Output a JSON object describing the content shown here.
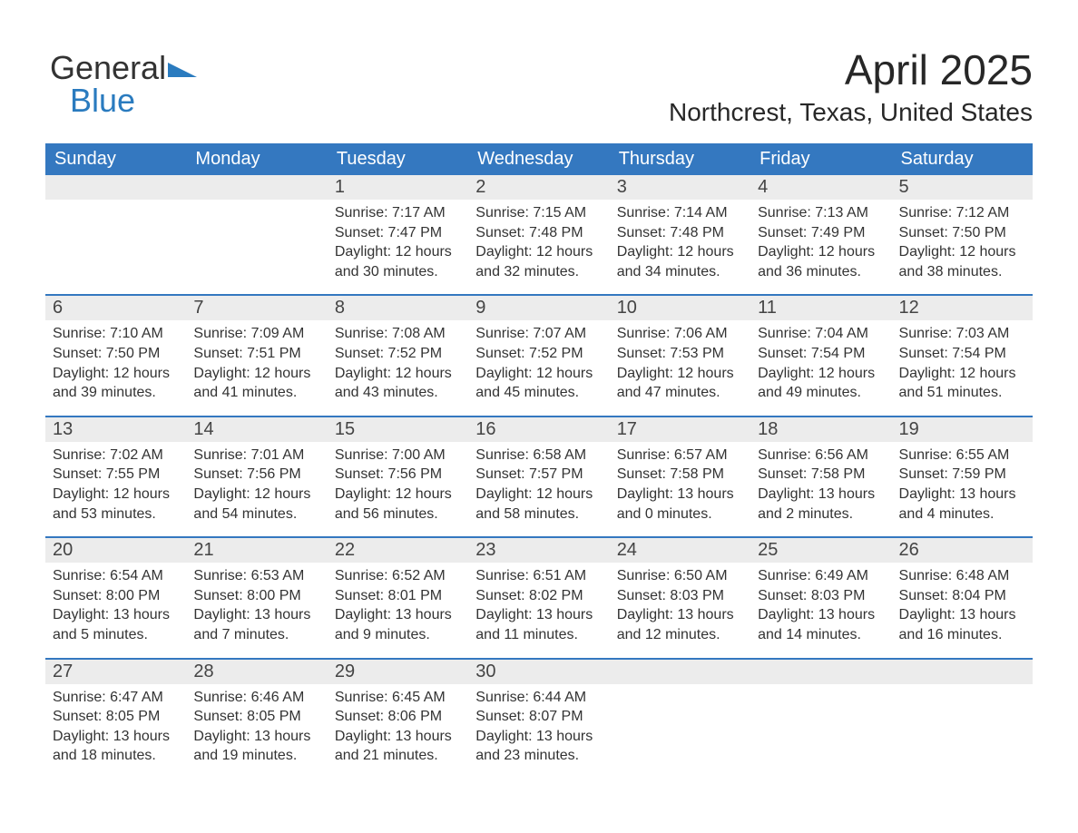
{
  "logo": {
    "general": "General",
    "blue": "Blue",
    "tri_color": "#2a7bbf"
  },
  "header": {
    "month": "April 2025",
    "location": "Northcrest, Texas, United States"
  },
  "colors": {
    "header_bg": "#3478c0",
    "daynum_bg": "#ececec",
    "week_divider": "#3478c0",
    "text": "#272727"
  },
  "daynames": [
    "Sunday",
    "Monday",
    "Tuesday",
    "Wednesday",
    "Thursday",
    "Friday",
    "Saturday"
  ],
  "weeks": [
    [
      {
        "n": "",
        "sunrise": "",
        "sunset": "",
        "daylight1": "",
        "daylight2": ""
      },
      {
        "n": "",
        "sunrise": "",
        "sunset": "",
        "daylight1": "",
        "daylight2": ""
      },
      {
        "n": "1",
        "sunrise": "Sunrise: 7:17 AM",
        "sunset": "Sunset: 7:47 PM",
        "daylight1": "Daylight: 12 hours",
        "daylight2": "and 30 minutes."
      },
      {
        "n": "2",
        "sunrise": "Sunrise: 7:15 AM",
        "sunset": "Sunset: 7:48 PM",
        "daylight1": "Daylight: 12 hours",
        "daylight2": "and 32 minutes."
      },
      {
        "n": "3",
        "sunrise": "Sunrise: 7:14 AM",
        "sunset": "Sunset: 7:48 PM",
        "daylight1": "Daylight: 12 hours",
        "daylight2": "and 34 minutes."
      },
      {
        "n": "4",
        "sunrise": "Sunrise: 7:13 AM",
        "sunset": "Sunset: 7:49 PM",
        "daylight1": "Daylight: 12 hours",
        "daylight2": "and 36 minutes."
      },
      {
        "n": "5",
        "sunrise": "Sunrise: 7:12 AM",
        "sunset": "Sunset: 7:50 PM",
        "daylight1": "Daylight: 12 hours",
        "daylight2": "and 38 minutes."
      }
    ],
    [
      {
        "n": "6",
        "sunrise": "Sunrise: 7:10 AM",
        "sunset": "Sunset: 7:50 PM",
        "daylight1": "Daylight: 12 hours",
        "daylight2": "and 39 minutes."
      },
      {
        "n": "7",
        "sunrise": "Sunrise: 7:09 AM",
        "sunset": "Sunset: 7:51 PM",
        "daylight1": "Daylight: 12 hours",
        "daylight2": "and 41 minutes."
      },
      {
        "n": "8",
        "sunrise": "Sunrise: 7:08 AM",
        "sunset": "Sunset: 7:52 PM",
        "daylight1": "Daylight: 12 hours",
        "daylight2": "and 43 minutes."
      },
      {
        "n": "9",
        "sunrise": "Sunrise: 7:07 AM",
        "sunset": "Sunset: 7:52 PM",
        "daylight1": "Daylight: 12 hours",
        "daylight2": "and 45 minutes."
      },
      {
        "n": "10",
        "sunrise": "Sunrise: 7:06 AM",
        "sunset": "Sunset: 7:53 PM",
        "daylight1": "Daylight: 12 hours",
        "daylight2": "and 47 minutes."
      },
      {
        "n": "11",
        "sunrise": "Sunrise: 7:04 AM",
        "sunset": "Sunset: 7:54 PM",
        "daylight1": "Daylight: 12 hours",
        "daylight2": "and 49 minutes."
      },
      {
        "n": "12",
        "sunrise": "Sunrise: 7:03 AM",
        "sunset": "Sunset: 7:54 PM",
        "daylight1": "Daylight: 12 hours",
        "daylight2": "and 51 minutes."
      }
    ],
    [
      {
        "n": "13",
        "sunrise": "Sunrise: 7:02 AM",
        "sunset": "Sunset: 7:55 PM",
        "daylight1": "Daylight: 12 hours",
        "daylight2": "and 53 minutes."
      },
      {
        "n": "14",
        "sunrise": "Sunrise: 7:01 AM",
        "sunset": "Sunset: 7:56 PM",
        "daylight1": "Daylight: 12 hours",
        "daylight2": "and 54 minutes."
      },
      {
        "n": "15",
        "sunrise": "Sunrise: 7:00 AM",
        "sunset": "Sunset: 7:56 PM",
        "daylight1": "Daylight: 12 hours",
        "daylight2": "and 56 minutes."
      },
      {
        "n": "16",
        "sunrise": "Sunrise: 6:58 AM",
        "sunset": "Sunset: 7:57 PM",
        "daylight1": "Daylight: 12 hours",
        "daylight2": "and 58 minutes."
      },
      {
        "n": "17",
        "sunrise": "Sunrise: 6:57 AM",
        "sunset": "Sunset: 7:58 PM",
        "daylight1": "Daylight: 13 hours",
        "daylight2": "and 0 minutes."
      },
      {
        "n": "18",
        "sunrise": "Sunrise: 6:56 AM",
        "sunset": "Sunset: 7:58 PM",
        "daylight1": "Daylight: 13 hours",
        "daylight2": "and 2 minutes."
      },
      {
        "n": "19",
        "sunrise": "Sunrise: 6:55 AM",
        "sunset": "Sunset: 7:59 PM",
        "daylight1": "Daylight: 13 hours",
        "daylight2": "and 4 minutes."
      }
    ],
    [
      {
        "n": "20",
        "sunrise": "Sunrise: 6:54 AM",
        "sunset": "Sunset: 8:00 PM",
        "daylight1": "Daylight: 13 hours",
        "daylight2": "and 5 minutes."
      },
      {
        "n": "21",
        "sunrise": "Sunrise: 6:53 AM",
        "sunset": "Sunset: 8:00 PM",
        "daylight1": "Daylight: 13 hours",
        "daylight2": "and 7 minutes."
      },
      {
        "n": "22",
        "sunrise": "Sunrise: 6:52 AM",
        "sunset": "Sunset: 8:01 PM",
        "daylight1": "Daylight: 13 hours",
        "daylight2": "and 9 minutes."
      },
      {
        "n": "23",
        "sunrise": "Sunrise: 6:51 AM",
        "sunset": "Sunset: 8:02 PM",
        "daylight1": "Daylight: 13 hours",
        "daylight2": "and 11 minutes."
      },
      {
        "n": "24",
        "sunrise": "Sunrise: 6:50 AM",
        "sunset": "Sunset: 8:03 PM",
        "daylight1": "Daylight: 13 hours",
        "daylight2": "and 12 minutes."
      },
      {
        "n": "25",
        "sunrise": "Sunrise: 6:49 AM",
        "sunset": "Sunset: 8:03 PM",
        "daylight1": "Daylight: 13 hours",
        "daylight2": "and 14 minutes."
      },
      {
        "n": "26",
        "sunrise": "Sunrise: 6:48 AM",
        "sunset": "Sunset: 8:04 PM",
        "daylight1": "Daylight: 13 hours",
        "daylight2": "and 16 minutes."
      }
    ],
    [
      {
        "n": "27",
        "sunrise": "Sunrise: 6:47 AM",
        "sunset": "Sunset: 8:05 PM",
        "daylight1": "Daylight: 13 hours",
        "daylight2": "and 18 minutes."
      },
      {
        "n": "28",
        "sunrise": "Sunrise: 6:46 AM",
        "sunset": "Sunset: 8:05 PM",
        "daylight1": "Daylight: 13 hours",
        "daylight2": "and 19 minutes."
      },
      {
        "n": "29",
        "sunrise": "Sunrise: 6:45 AM",
        "sunset": "Sunset: 8:06 PM",
        "daylight1": "Daylight: 13 hours",
        "daylight2": "and 21 minutes."
      },
      {
        "n": "30",
        "sunrise": "Sunrise: 6:44 AM",
        "sunset": "Sunset: 8:07 PM",
        "daylight1": "Daylight: 13 hours",
        "daylight2": "and 23 minutes."
      },
      {
        "n": "",
        "sunrise": "",
        "sunset": "",
        "daylight1": "",
        "daylight2": ""
      },
      {
        "n": "",
        "sunrise": "",
        "sunset": "",
        "daylight1": "",
        "daylight2": ""
      },
      {
        "n": "",
        "sunrise": "",
        "sunset": "",
        "daylight1": "",
        "daylight2": ""
      }
    ]
  ]
}
